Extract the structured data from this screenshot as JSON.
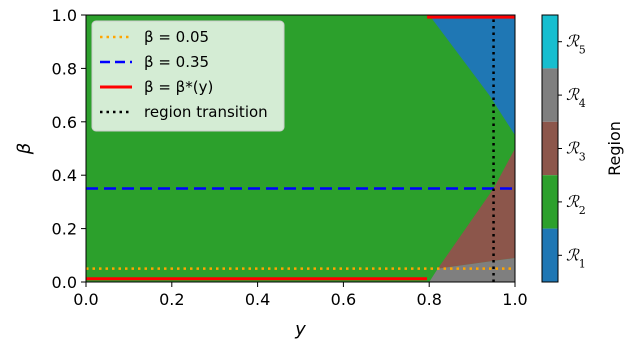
{
  "chart_data": {
    "type": "heatmap",
    "xlabel": "y",
    "ylabel": "β",
    "xlim": [
      0,
      1
    ],
    "ylim": [
      0,
      1
    ],
    "x_ticks": [
      "0.0",
      "0.2",
      "0.4",
      "0.6",
      "0.8",
      "1.0"
    ],
    "y_ticks": [
      "0.0",
      "0.2",
      "0.4",
      "0.6",
      "0.8",
      "1.0"
    ],
    "colors": {
      "R1": "#1f77b4",
      "R2": "#2ca02c",
      "R3": "#8c564b",
      "R4": "#7f7f7f",
      "R5": "#17becf"
    },
    "regions": [
      {
        "name": "R1",
        "polygon": [
          [
            0.8,
            1.0
          ],
          [
            1.0,
            1.0
          ],
          [
            1.0,
            0.55
          ],
          [
            0.94,
            0.7
          ]
        ]
      },
      {
        "name": "R3",
        "polygon": [
          [
            0.82,
            0.05
          ],
          [
            1.0,
            0.09
          ],
          [
            1.0,
            0.5
          ],
          [
            0.95,
            0.35
          ]
        ]
      },
      {
        "name": "R4",
        "polygon": [
          [
            0.8,
            0.0
          ],
          [
            1.0,
            0.0
          ],
          [
            1.0,
            0.09
          ],
          [
            0.82,
            0.05
          ]
        ]
      }
    ],
    "lines": [
      {
        "label": "β = 0.05",
        "style": "dotted",
        "color": "#ffa500",
        "x": [
          0.0,
          1.0
        ],
        "y": [
          0.05,
          0.05
        ]
      },
      {
        "label": "β = 0.35",
        "style": "dashed",
        "color": "#0000ff",
        "x": [
          0.0,
          1.0
        ],
        "y": [
          0.35,
          0.35
        ]
      },
      {
        "label": "β = β*(y)",
        "style": "solid",
        "color": "#ff0000",
        "segments": [
          {
            "x": [
              0.0,
              0.795
            ],
            "y": [
              0.012,
              0.012
            ]
          },
          {
            "x": [
              0.795,
              1.0
            ],
            "y": [
              0.992,
              0.992
            ]
          }
        ]
      },
      {
        "label": "region transition",
        "style": "dotted",
        "color": "#000000",
        "x": [
          0.95,
          0.95
        ],
        "y": [
          0.0,
          1.0
        ]
      }
    ],
    "legend": {
      "placement": "top-left",
      "entries": [
        {
          "label": "β = 0.05",
          "color": "#ffa500",
          "style": "dotted"
        },
        {
          "label": "β = 0.35",
          "color": "#0000ff",
          "style": "dashed"
        },
        {
          "label": "β = β*(y)",
          "color": "#ff0000",
          "style": "solid"
        },
        {
          "label": "region transition",
          "color": "#000000",
          "style": "dotted"
        }
      ]
    },
    "colorbar": {
      "title": "Region",
      "labels": [
        "R5",
        "R4",
        "R3",
        "R2",
        "R1"
      ],
      "colors": [
        "#17becf",
        "#7f7f7f",
        "#8c564b",
        "#2ca02c",
        "#1f77b4"
      ]
    }
  }
}
